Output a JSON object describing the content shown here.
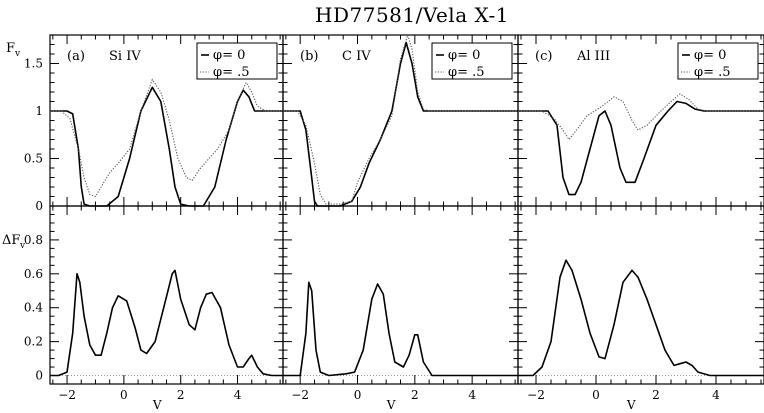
{
  "title": "HD77581/Vela X-1",
  "top_ylabel": "F",
  "top_ylabel_sub": "v",
  "bottom_ylabel": "ΔF",
  "bottom_ylabel_sub": "v",
  "xlabel": "V",
  "chart_data": {
    "type": "line",
    "xlim": [
      -2.6,
      5.6
    ],
    "x_ticks": [
      -2,
      0,
      2,
      4
    ],
    "top_ylim": [
      0,
      1.8
    ],
    "top_y_ticks": [
      0,
      0.5,
      1,
      1.5
    ],
    "top_y_tick_labels": [
      "0",
      "0.5",
      "1",
      "1.5"
    ],
    "bottom_ylim": [
      -0.05,
      1.0
    ],
    "bottom_y_ticks": [
      0,
      0.2,
      0.4,
      0.6,
      0.8
    ],
    "bottom_y_tick_labels": [
      "0",
      "0.2",
      "0.4",
      "0.6",
      "0.8"
    ],
    "legend": {
      "placement": "top-right",
      "entries": [
        "φ= 0",
        "φ= .5"
      ],
      "styles": [
        "solid",
        "dotted"
      ]
    },
    "panels": [
      {
        "label": "(a)",
        "ion": "Si IV",
        "top_series": [
          {
            "name": "φ= 0",
            "style": "solid",
            "points": [
              [
                -2.6,
                1.0
              ],
              [
                -2.0,
                1.0
              ],
              [
                -1.8,
                0.97
              ],
              [
                -1.6,
                0.6
              ],
              [
                -1.5,
                0.2
              ],
              [
                -1.4,
                0.02
              ],
              [
                -1.2,
                0.0
              ],
              [
                -0.6,
                0.0
              ],
              [
                -0.2,
                0.1
              ],
              [
                0.2,
                0.5
              ],
              [
                0.6,
                1.0
              ],
              [
                1.0,
                1.25
              ],
              [
                1.3,
                1.1
              ],
              [
                1.6,
                0.6
              ],
              [
                1.8,
                0.2
              ],
              [
                2.0,
                0.02
              ],
              [
                2.3,
                0.0
              ],
              [
                2.8,
                0.0
              ],
              [
                3.2,
                0.2
              ],
              [
                3.6,
                0.7
              ],
              [
                4.0,
                1.1
              ],
              [
                4.2,
                1.22
              ],
              [
                4.4,
                1.15
              ],
              [
                4.6,
                1.0
              ],
              [
                4.8,
                1.0
              ],
              [
                5.6,
                1.0
              ]
            ]
          },
          {
            "name": "φ= .5",
            "style": "dotted",
            "points": [
              [
                -2.6,
                1.0
              ],
              [
                -2.2,
                1.0
              ],
              [
                -1.9,
                0.92
              ],
              [
                -1.6,
                0.6
              ],
              [
                -1.4,
                0.3
              ],
              [
                -1.2,
                0.12
              ],
              [
                -1.0,
                0.1
              ],
              [
                -0.8,
                0.2
              ],
              [
                -0.5,
                0.35
              ],
              [
                -0.2,
                0.45
              ],
              [
                0.2,
                0.6
              ],
              [
                0.6,
                1.0
              ],
              [
                1.0,
                1.33
              ],
              [
                1.3,
                1.2
              ],
              [
                1.6,
                0.9
              ],
              [
                1.9,
                0.5
              ],
              [
                2.2,
                0.3
              ],
              [
                2.4,
                0.27
              ],
              [
                2.7,
                0.4
              ],
              [
                3.0,
                0.5
              ],
              [
                3.3,
                0.6
              ],
              [
                3.7,
                0.8
              ],
              [
                4.0,
                1.1
              ],
              [
                4.3,
                1.3
              ],
              [
                4.5,
                1.2
              ],
              [
                4.7,
                1.05
              ],
              [
                5.0,
                1.0
              ],
              [
                5.6,
                1.0
              ]
            ]
          }
        ],
        "bottom_series": [
          {
            "name": "ΔF",
            "style": "solid",
            "points": [
              [
                -2.6,
                0.0
              ],
              [
                -2.3,
                0.0
              ],
              [
                -2.0,
                0.02
              ],
              [
                -1.8,
                0.25
              ],
              [
                -1.65,
                0.6
              ],
              [
                -1.55,
                0.55
              ],
              [
                -1.4,
                0.35
              ],
              [
                -1.2,
                0.18
              ],
              [
                -1.0,
                0.12
              ],
              [
                -0.8,
                0.12
              ],
              [
                -0.6,
                0.25
              ],
              [
                -0.4,
                0.4
              ],
              [
                -0.2,
                0.47
              ],
              [
                0.1,
                0.44
              ],
              [
                0.4,
                0.28
              ],
              [
                0.6,
                0.15
              ],
              [
                0.8,
                0.13
              ],
              [
                1.1,
                0.2
              ],
              [
                1.4,
                0.4
              ],
              [
                1.7,
                0.6
              ],
              [
                1.8,
                0.62
              ],
              [
                2.0,
                0.45
              ],
              [
                2.3,
                0.3
              ],
              [
                2.5,
                0.27
              ],
              [
                2.7,
                0.4
              ],
              [
                2.9,
                0.48
              ],
              [
                3.1,
                0.49
              ],
              [
                3.4,
                0.4
              ],
              [
                3.7,
                0.18
              ],
              [
                4.0,
                0.05
              ],
              [
                4.2,
                0.05
              ],
              [
                4.4,
                0.1
              ],
              [
                4.5,
                0.12
              ],
              [
                4.7,
                0.05
              ],
              [
                4.9,
                0.01
              ],
              [
                5.2,
                0.0
              ],
              [
                5.6,
                0.0
              ]
            ]
          }
        ]
      },
      {
        "label": "(b)",
        "ion": "C IV",
        "top_series": [
          {
            "name": "φ= 0",
            "style": "solid",
            "points": [
              [
                -2.6,
                1.0
              ],
              [
                -2.0,
                1.0
              ],
              [
                -1.8,
                0.8
              ],
              [
                -1.6,
                0.3
              ],
              [
                -1.5,
                0.05
              ],
              [
                -1.4,
                0.0
              ],
              [
                -0.6,
                0.0
              ],
              [
                -0.2,
                0.05
              ],
              [
                0.1,
                0.2
              ],
              [
                0.4,
                0.45
              ],
              [
                0.8,
                0.7
              ],
              [
                1.2,
                1.0
              ],
              [
                1.5,
                1.5
              ],
              [
                1.7,
                1.72
              ],
              [
                1.9,
                1.5
              ],
              [
                2.1,
                1.15
              ],
              [
                2.3,
                1.0
              ],
              [
                5.6,
                1.0
              ]
            ]
          },
          {
            "name": "φ= .5",
            "style": "dotted",
            "points": [
              [
                -2.6,
                1.0
              ],
              [
                -2.1,
                1.0
              ],
              [
                -1.8,
                0.85
              ],
              [
                -1.5,
                0.45
              ],
              [
                -1.3,
                0.12
              ],
              [
                -1.1,
                0.02
              ],
              [
                -0.6,
                0.02
              ],
              [
                -0.2,
                0.05
              ],
              [
                0.0,
                0.25
              ],
              [
                0.4,
                0.5
              ],
              [
                0.8,
                0.7
              ],
              [
                1.2,
                0.95
              ],
              [
                1.5,
                1.55
              ],
              [
                1.75,
                1.8
              ],
              [
                1.9,
                1.65
              ],
              [
                2.1,
                1.2
              ],
              [
                2.3,
                1.02
              ],
              [
                2.5,
                1.0
              ],
              [
                5.6,
                1.0
              ]
            ]
          }
        ],
        "bottom_series": [
          {
            "name": "ΔF",
            "style": "solid",
            "points": [
              [
                -2.6,
                0.0
              ],
              [
                -2.0,
                0.0
              ],
              [
                -1.8,
                0.25
              ],
              [
                -1.7,
                0.55
              ],
              [
                -1.6,
                0.5
              ],
              [
                -1.45,
                0.15
              ],
              [
                -1.3,
                0.02
              ],
              [
                -1.0,
                0.0
              ],
              [
                -0.4,
                0.01
              ],
              [
                -0.1,
                0.02
              ],
              [
                0.2,
                0.15
              ],
              [
                0.5,
                0.45
              ],
              [
                0.7,
                0.54
              ],
              [
                0.9,
                0.48
              ],
              [
                1.1,
                0.25
              ],
              [
                1.3,
                0.08
              ],
              [
                1.6,
                0.05
              ],
              [
                1.8,
                0.12
              ],
              [
                2.0,
                0.24
              ],
              [
                2.1,
                0.24
              ],
              [
                2.3,
                0.08
              ],
              [
                2.6,
                0.0
              ],
              [
                5.6,
                0.0
              ]
            ]
          }
        ]
      },
      {
        "label": "(c)",
        "ion": "Al III",
        "top_series": [
          {
            "name": "φ= 0",
            "style": "solid",
            "points": [
              [
                -2.6,
                1.0
              ],
              [
                -1.6,
                1.0
              ],
              [
                -1.3,
                0.85
              ],
              [
                -1.1,
                0.3
              ],
              [
                -0.9,
                0.12
              ],
              [
                -0.7,
                0.12
              ],
              [
                -0.5,
                0.25
              ],
              [
                -0.2,
                0.6
              ],
              [
                0.1,
                0.95
              ],
              [
                0.3,
                1.0
              ],
              [
                0.5,
                0.85
              ],
              [
                0.8,
                0.4
              ],
              [
                1.0,
                0.25
              ],
              [
                1.3,
                0.25
              ],
              [
                1.6,
                0.5
              ],
              [
                2.0,
                0.85
              ],
              [
                2.4,
                1.0
              ],
              [
                2.7,
                1.1
              ],
              [
                3.0,
                1.08
              ],
              [
                3.3,
                1.02
              ],
              [
                3.6,
                1.0
              ],
              [
                5.6,
                1.0
              ]
            ]
          },
          {
            "name": "φ= .5",
            "style": "dotted",
            "points": [
              [
                -2.6,
                1.0
              ],
              [
                -1.8,
                1.0
              ],
              [
                -1.4,
                0.92
              ],
              [
                -1.1,
                0.8
              ],
              [
                -0.9,
                0.7
              ],
              [
                -0.6,
                0.82
              ],
              [
                -0.3,
                0.95
              ],
              [
                0.2,
                1.05
              ],
              [
                0.6,
                1.15
              ],
              [
                0.9,
                1.1
              ],
              [
                1.2,
                0.9
              ],
              [
                1.4,
                0.8
              ],
              [
                1.7,
                0.85
              ],
              [
                2.1,
                0.98
              ],
              [
                2.5,
                1.1
              ],
              [
                2.8,
                1.18
              ],
              [
                3.1,
                1.12
              ],
              [
                3.4,
                1.02
              ],
              [
                3.7,
                1.0
              ],
              [
                5.6,
                1.0
              ]
            ]
          }
        ],
        "bottom_series": [
          {
            "name": "ΔF",
            "style": "solid",
            "points": [
              [
                -2.6,
                0.0
              ],
              [
                -2.1,
                0.0
              ],
              [
                -1.8,
                0.05
              ],
              [
                -1.5,
                0.2
              ],
              [
                -1.2,
                0.58
              ],
              [
                -1.0,
                0.68
              ],
              [
                -0.8,
                0.62
              ],
              [
                -0.5,
                0.45
              ],
              [
                -0.2,
                0.25
              ],
              [
                0.1,
                0.11
              ],
              [
                0.3,
                0.1
              ],
              [
                0.6,
                0.3
              ],
              [
                0.9,
                0.55
              ],
              [
                1.2,
                0.62
              ],
              [
                1.4,
                0.58
              ],
              [
                1.7,
                0.45
              ],
              [
                2.0,
                0.3
              ],
              [
                2.3,
                0.15
              ],
              [
                2.6,
                0.06
              ],
              [
                2.8,
                0.07
              ],
              [
                3.0,
                0.08
              ],
              [
                3.2,
                0.06
              ],
              [
                3.4,
                0.02
              ],
              [
                3.8,
                0.0
              ],
              [
                5.6,
                0.0
              ]
            ]
          }
        ]
      }
    ]
  }
}
